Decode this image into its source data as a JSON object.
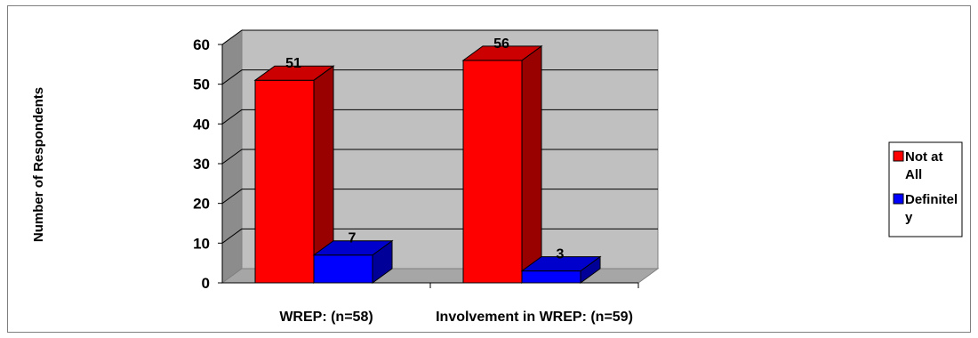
{
  "chart_data": {
    "type": "bar",
    "title": "",
    "xlabel": "",
    "ylabel": "Number of Respondents",
    "categories": [
      "WREP: (n=58)",
      "Involvement in WREP: (n=59)"
    ],
    "series": [
      {
        "name": "Not at All",
        "legend_lines": [
          "Not at",
          "All"
        ],
        "values": [
          51,
          56
        ],
        "color": "#ff0000",
        "side_color": "#990000",
        "top_color": "#cc0000"
      },
      {
        "name": "Definitely",
        "legend_lines": [
          "Definitel",
          "y"
        ],
        "values": [
          7,
          3
        ],
        "color": "#0000ff",
        "side_color": "#000099",
        "top_color": "#0000cc"
      }
    ],
    "ylim": [
      0,
      60
    ],
    "yticks": [
      0,
      10,
      20,
      30,
      40,
      50,
      60
    ],
    "grid": true,
    "three_d": true,
    "legend_position": "right",
    "wall_color": "#c0c0c0",
    "floor_color": "#a6a6a6"
  }
}
